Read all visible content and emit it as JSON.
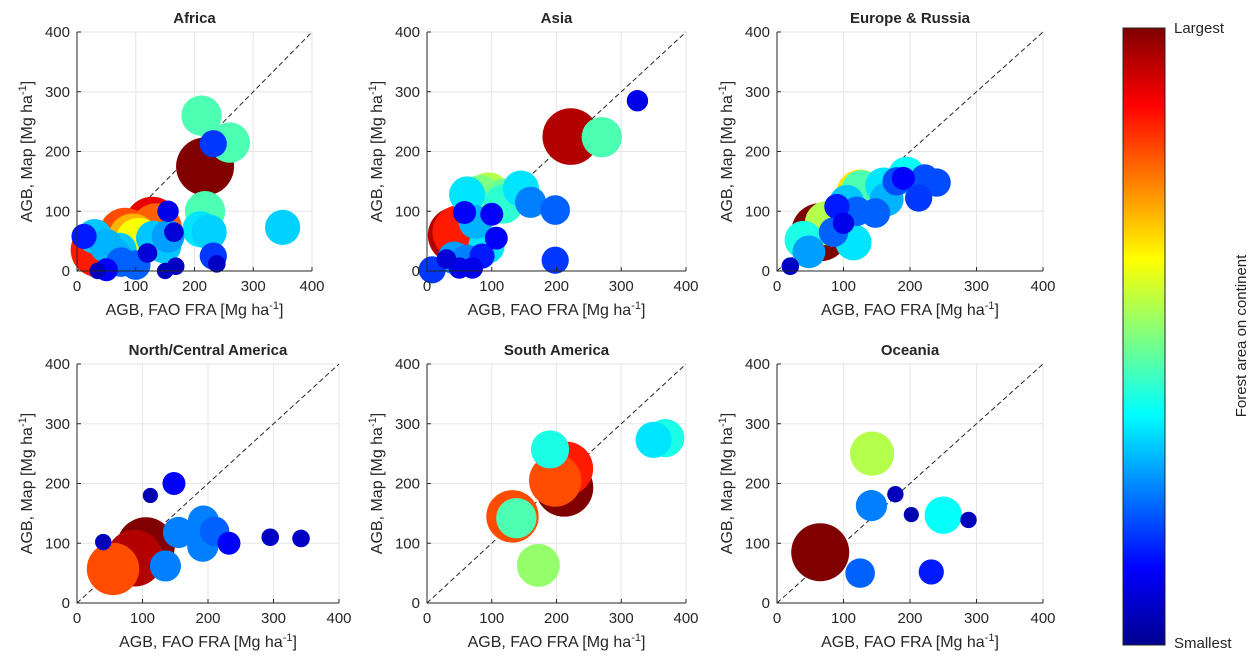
{
  "colorbar": {
    "label": "Forest area on continent",
    "top_label": "Largest",
    "bottom_label": "Smallest",
    "colormap": "jet"
  },
  "chart_data": [
    {
      "type": "scatter",
      "title": "Africa",
      "xlabel": "AGB, FAO FRA [Mg ha",
      "ylabel": "AGB, Map [Mg ha",
      "label_suffix": "]",
      "label_exponent": "-1",
      "xlim": [
        0,
        400
      ],
      "ylim": [
        0,
        400
      ],
      "xticks": [
        0,
        100,
        200,
        300,
        400
      ],
      "yticks": [
        0,
        100,
        200,
        300,
        400
      ],
      "grid": true,
      "reference_line": "1:1",
      "points": [
        {
          "x": 35,
          "y": 35,
          "area": 0.85
        },
        {
          "x": 82,
          "y": 62,
          "area": 0.8
        },
        {
          "x": 95,
          "y": 55,
          "area": 0.7
        },
        {
          "x": 105,
          "y": 50,
          "area": 0.62
        },
        {
          "x": 128,
          "y": 78,
          "area": 0.9
        },
        {
          "x": 135,
          "y": 70,
          "area": 0.78
        },
        {
          "x": 218,
          "y": 175,
          "area": 1.0
        },
        {
          "x": 212,
          "y": 260,
          "area": 0.45
        },
        {
          "x": 260,
          "y": 215,
          "area": 0.45
        },
        {
          "x": 218,
          "y": 100,
          "area": 0.45
        },
        {
          "x": 350,
          "y": 73,
          "area": 0.33
        },
        {
          "x": 210,
          "y": 70,
          "area": 0.35
        },
        {
          "x": 225,
          "y": 65,
          "area": 0.33
        },
        {
          "x": 30,
          "y": 58,
          "area": 0.32
        },
        {
          "x": 50,
          "y": 42,
          "area": 0.3
        },
        {
          "x": 65,
          "y": 25,
          "area": 0.3
        },
        {
          "x": 72,
          "y": 35,
          "area": 0.32
        },
        {
          "x": 148,
          "y": 42,
          "area": 0.32
        },
        {
          "x": 130,
          "y": 55,
          "area": 0.32
        },
        {
          "x": 155,
          "y": 58,
          "area": 0.28
        },
        {
          "x": 100,
          "y": 10,
          "area": 0.22
        },
        {
          "x": 75,
          "y": 15,
          "area": 0.22
        },
        {
          "x": 232,
          "y": 213,
          "area": 0.18
        },
        {
          "x": 232,
          "y": 25,
          "area": 0.18
        },
        {
          "x": 12,
          "y": 58,
          "area": 0.15
        },
        {
          "x": 50,
          "y": 2,
          "area": 0.12
        },
        {
          "x": 155,
          "y": 100,
          "area": 0.1
        },
        {
          "x": 165,
          "y": 65,
          "area": 0.08
        },
        {
          "x": 120,
          "y": 30,
          "area": 0.08
        },
        {
          "x": 168,
          "y": 8,
          "area": 0.06
        },
        {
          "x": 238,
          "y": 12,
          "area": 0.06
        },
        {
          "x": 150,
          "y": 0,
          "area": 0.05
        },
        {
          "x": 35,
          "y": 0,
          "area": 0.05
        }
      ]
    },
    {
      "type": "scatter",
      "title": "Asia",
      "xlabel": "AGB, FAO FRA [Mg ha",
      "ylabel": "AGB, Map [Mg ha",
      "label_suffix": "]",
      "label_exponent": "-1",
      "xlim": [
        0,
        400
      ],
      "ylim": [
        0,
        400
      ],
      "xticks": [
        0,
        100,
        200,
        300,
        400
      ],
      "yticks": [
        0,
        100,
        200,
        300,
        400
      ],
      "grid": true,
      "reference_line": "1:1",
      "points": [
        {
          "x": 45,
          "y": 60,
          "area": 0.95
        },
        {
          "x": 50,
          "y": 65,
          "area": 0.85
        },
        {
          "x": 222,
          "y": 225,
          "area": 0.95
        },
        {
          "x": 270,
          "y": 224,
          "area": 0.45
        },
        {
          "x": 95,
          "y": 128,
          "area": 0.55
        },
        {
          "x": 82,
          "y": 125,
          "area": 0.5
        },
        {
          "x": 120,
          "y": 120,
          "area": 0.48
        },
        {
          "x": 118,
          "y": 112,
          "area": 0.42
        },
        {
          "x": 62,
          "y": 128,
          "area": 0.35
        },
        {
          "x": 145,
          "y": 138,
          "area": 0.35
        },
        {
          "x": 92,
          "y": 42,
          "area": 0.35
        },
        {
          "x": 75,
          "y": 82,
          "area": 0.3
        },
        {
          "x": 42,
          "y": 22,
          "area": 0.28
        },
        {
          "x": 62,
          "y": 18,
          "area": 0.25
        },
        {
          "x": 160,
          "y": 115,
          "area": 0.25
        },
        {
          "x": 198,
          "y": 102,
          "area": 0.22
        },
        {
          "x": 198,
          "y": 18,
          "area": 0.18
        },
        {
          "x": 8,
          "y": 2,
          "area": 0.18
        },
        {
          "x": 85,
          "y": 25,
          "area": 0.15
        },
        {
          "x": 325,
          "y": 285,
          "area": 0.1
        },
        {
          "x": 58,
          "y": 98,
          "area": 0.12
        },
        {
          "x": 100,
          "y": 95,
          "area": 0.12
        },
        {
          "x": 107,
          "y": 55,
          "area": 0.12
        },
        {
          "x": 50,
          "y": 5,
          "area": 0.1
        },
        {
          "x": 70,
          "y": 5,
          "area": 0.1
        },
        {
          "x": 30,
          "y": 20,
          "area": 0.08
        }
      ]
    },
    {
      "type": "scatter",
      "title": "Europe & Russia",
      "xlabel": "AGB, FAO FRA [Mg ha",
      "ylabel": "AGB, Map [Mg ha",
      "label_suffix": "]",
      "label_exponent": "-1",
      "xlim": [
        0,
        400
      ],
      "ylim": [
        0,
        400
      ],
      "xticks": [
        0,
        100,
        200,
        300,
        400
      ],
      "yticks": [
        0,
        100,
        200,
        300,
        400
      ],
      "grid": true,
      "reference_line": "1:1",
      "points": [
        {
          "x": 65,
          "y": 65,
          "area": 1.0
        },
        {
          "x": 75,
          "y": 80,
          "area": 0.55
        },
        {
          "x": 125,
          "y": 130,
          "area": 0.65
        },
        {
          "x": 127,
          "y": 135,
          "area": 0.45
        },
        {
          "x": 40,
          "y": 52,
          "area": 0.4
        },
        {
          "x": 195,
          "y": 160,
          "area": 0.38
        },
        {
          "x": 160,
          "y": 143,
          "area": 0.35
        },
        {
          "x": 115,
          "y": 48,
          "area": 0.35
        },
        {
          "x": 105,
          "y": 115,
          "area": 0.32
        },
        {
          "x": 165,
          "y": 120,
          "area": 0.3
        },
        {
          "x": 48,
          "y": 32,
          "area": 0.28
        },
        {
          "x": 85,
          "y": 65,
          "area": 0.22
        },
        {
          "x": 120,
          "y": 100,
          "area": 0.22
        },
        {
          "x": 148,
          "y": 97,
          "area": 0.22
        },
        {
          "x": 180,
          "y": 150,
          "area": 0.2
        },
        {
          "x": 222,
          "y": 155,
          "area": 0.2
        },
        {
          "x": 240,
          "y": 148,
          "area": 0.2
        },
        {
          "x": 213,
          "y": 122,
          "area": 0.18
        },
        {
          "x": 90,
          "y": 108,
          "area": 0.15
        },
        {
          "x": 190,
          "y": 155,
          "area": 0.12
        },
        {
          "x": 100,
          "y": 80,
          "area": 0.1
        },
        {
          "x": 20,
          "y": 8,
          "area": 0.06
        }
      ]
    },
    {
      "type": "scatter",
      "title": "North/Central America",
      "xlabel": "AGB, FAO FRA [Mg ha",
      "ylabel": "AGB, Map [Mg ha",
      "label_suffix": "]",
      "label_exponent": "-1",
      "xlim": [
        0,
        400
      ],
      "ylim": [
        0,
        400
      ],
      "xticks": [
        0,
        100,
        200,
        300,
        400
      ],
      "yticks": [
        0,
        100,
        200,
        300,
        400
      ],
      "grid": true,
      "reference_line": "1:1",
      "points": [
        {
          "x": 105,
          "y": 95,
          "area": 1.0
        },
        {
          "x": 88,
          "y": 75,
          "area": 0.95
        },
        {
          "x": 55,
          "y": 57,
          "area": 0.8
        },
        {
          "x": 193,
          "y": 137,
          "area": 0.25
        },
        {
          "x": 155,
          "y": 118,
          "area": 0.25
        },
        {
          "x": 192,
          "y": 95,
          "area": 0.25
        },
        {
          "x": 135,
          "y": 62,
          "area": 0.25
        },
        {
          "x": 210,
          "y": 120,
          "area": 0.22
        },
        {
          "x": 148,
          "y": 200,
          "area": 0.12
        },
        {
          "x": 232,
          "y": 100,
          "area": 0.12
        },
        {
          "x": 295,
          "y": 110,
          "area": 0.06
        },
        {
          "x": 342,
          "y": 108,
          "area": 0.06
        },
        {
          "x": 40,
          "y": 102,
          "area": 0.05
        },
        {
          "x": 112,
          "y": 180,
          "area": 0.04
        }
      ]
    },
    {
      "type": "scatter",
      "title": "South America",
      "xlabel": "AGB, FAO FRA [Mg ha",
      "ylabel": "AGB, Map [Mg ha",
      "label_suffix": "]",
      "label_exponent": "-1",
      "xlim": [
        0,
        400
      ],
      "ylim": [
        0,
        400
      ],
      "xticks": [
        0,
        100,
        200,
        300,
        400
      ],
      "yticks": [
        0,
        100,
        200,
        300,
        400
      ],
      "grid": true,
      "reference_line": "1:1",
      "points": [
        {
          "x": 212,
          "y": 193,
          "area": 1.0
        },
        {
          "x": 215,
          "y": 225,
          "area": 0.85
        },
        {
          "x": 198,
          "y": 205,
          "area": 0.8
        },
        {
          "x": 132,
          "y": 145,
          "area": 0.8
        },
        {
          "x": 138,
          "y": 142,
          "area": 0.45
        },
        {
          "x": 190,
          "y": 257,
          "area": 0.4
        },
        {
          "x": 350,
          "y": 273,
          "area": 0.35
        },
        {
          "x": 368,
          "y": 276,
          "area": 0.4
        },
        {
          "x": 172,
          "y": 63,
          "area": 0.52
        }
      ]
    },
    {
      "type": "scatter",
      "title": "Oceania",
      "xlabel": "AGB, FAO FRA [Mg ha",
      "ylabel": "AGB, Map [Mg ha",
      "label_suffix": "]",
      "label_exponent": "-1",
      "xlim": [
        0,
        400
      ],
      "ylim": [
        0,
        400
      ],
      "xticks": [
        0,
        100,
        200,
        300,
        400
      ],
      "yticks": [
        0,
        100,
        200,
        300,
        400
      ],
      "grid": true,
      "reference_line": "1:1",
      "points": [
        {
          "x": 65,
          "y": 85,
          "area": 1.0
        },
        {
          "x": 143,
          "y": 250,
          "area": 0.55
        },
        {
          "x": 250,
          "y": 147,
          "area": 0.38
        },
        {
          "x": 142,
          "y": 163,
          "area": 0.25
        },
        {
          "x": 125,
          "y": 50,
          "area": 0.22
        },
        {
          "x": 232,
          "y": 52,
          "area": 0.15
        },
        {
          "x": 178,
          "y": 182,
          "area": 0.05
        },
        {
          "x": 202,
          "y": 148,
          "area": 0.04
        },
        {
          "x": 288,
          "y": 139,
          "area": 0.05
        }
      ]
    }
  ]
}
